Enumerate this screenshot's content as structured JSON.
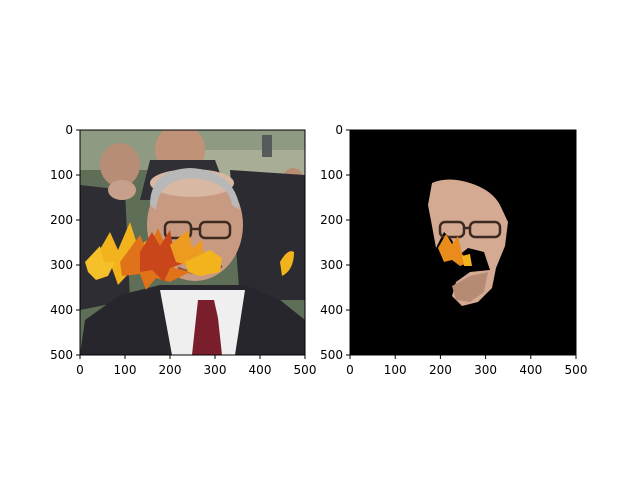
{
  "figure": {
    "background": "#ffffff"
  },
  "chart_data": [
    {
      "type": "image",
      "title": "",
      "xlabel": "",
      "ylabel": "",
      "xlim": [
        0,
        500
      ],
      "ylim": [
        500,
        0
      ],
      "xticks": [
        "0",
        "100",
        "200",
        "300",
        "400",
        "500"
      ],
      "yticks": [
        "0",
        "100",
        "200",
        "300",
        "400",
        "500"
      ],
      "content": "photo",
      "colors": {
        "background_foliage": "#5f6e56",
        "suit": "#2b2a30",
        "shirt": "#efefef",
        "tie": "#7a1e2b",
        "skin": "#c99a82",
        "leaf_yellow": "#f2b31d",
        "leaf_orange": "#e0731a",
        "leaf_red": "#c9461a"
      }
    },
    {
      "type": "image",
      "title": "",
      "xlabel": "",
      "ylabel": "",
      "xlim": [
        0,
        500
      ],
      "ylim": [
        500,
        0
      ],
      "xticks": [
        "0",
        "100",
        "200",
        "300",
        "400",
        "500"
      ],
      "yticks": [
        "0",
        "100",
        "200",
        "300",
        "400",
        "500"
      ],
      "content": "masked-face",
      "colors": {
        "background": "#000000",
        "skin": "#d4aa92",
        "leaf_orange": "#e98c1c",
        "glasses": "#3a2a22"
      }
    }
  ]
}
